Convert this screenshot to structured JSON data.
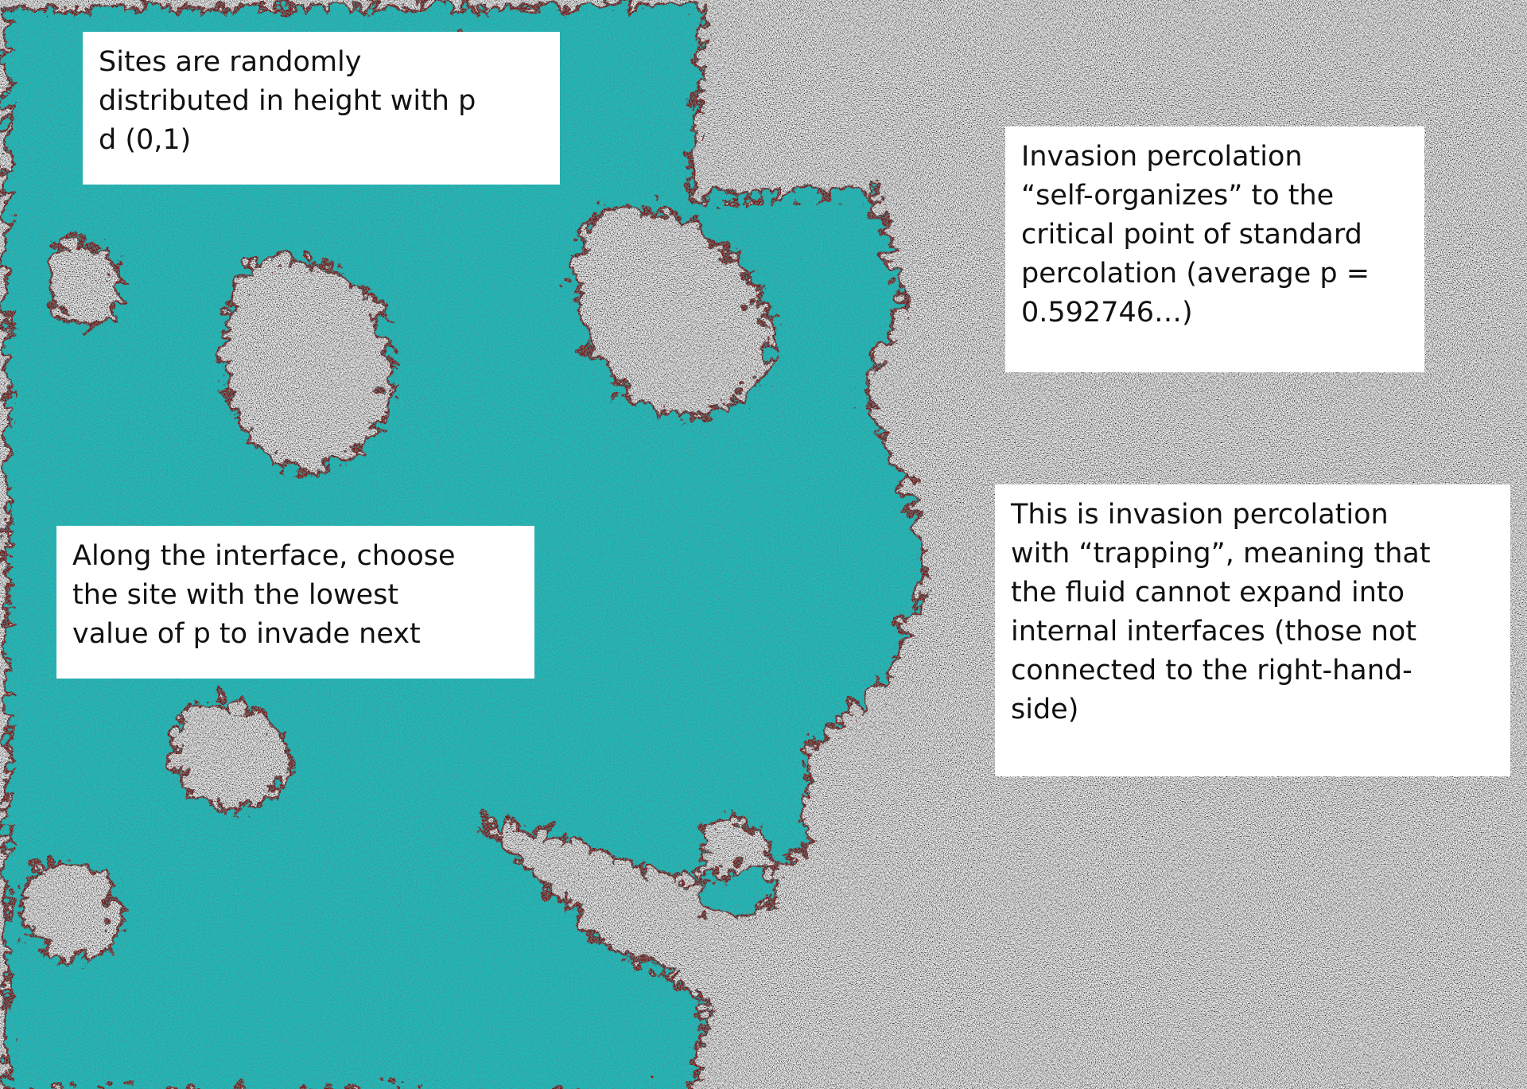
{
  "boxes": [
    {
      "lines": [
        "Sites are randomly",
        "distributed in height with p",
        "d (0,1)"
      ]
    },
    {
      "lines": [
        "Invasion percolation",
        "“self-organizes” to the",
        "critical point of standard",
        "percolation (average p =",
        "0.592746…)"
      ]
    },
    {
      "lines": [
        "Along the interface, choose",
        "the site with the lowest",
        "value of p to invade next"
      ]
    },
    {
      "lines": [
        "This is invasion percolation",
        "with “trapping”, meaning that",
        "the fluid cannot expand into",
        "internal interfaces (those not",
        "connected to the right-hand-",
        "side)"
      ]
    }
  ]
}
